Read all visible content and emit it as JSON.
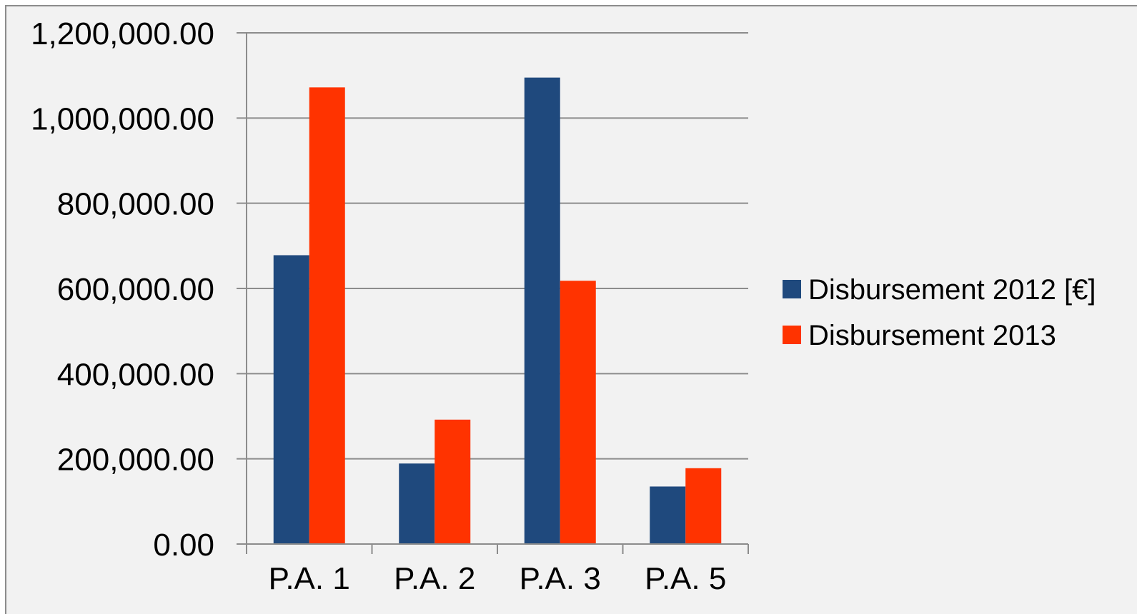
{
  "chart_data": {
    "type": "bar",
    "title": "",
    "xlabel": "",
    "ylabel": "",
    "categories": [
      "P.A. 1",
      "P.A. 2",
      "P.A. 3",
      "P.A. 5"
    ],
    "series": [
      {
        "name": "Disbursement 2012 [€]",
        "color": "#1f497d",
        "values": [
          678000,
          189000,
          1095000,
          135000
        ]
      },
      {
        "name": "Disbursement 2013",
        "color": "#ff3300",
        "values": [
          1072000,
          292000,
          618000,
          178000
        ]
      }
    ],
    "ylim": [
      0,
      1200000
    ],
    "yticks": [
      0,
      200000,
      400000,
      600000,
      800000,
      1000000,
      1200000
    ],
    "ytick_labels": [
      "0.00",
      "200,000.00",
      "400,000.00",
      "600,000.00",
      "800,000.00",
      "1,000,000.00",
      "1,200,000.00"
    ],
    "grid": true,
    "legend_position": "right",
    "background_color": "#f2f2f2",
    "grid_color": "#8c8c8c"
  }
}
